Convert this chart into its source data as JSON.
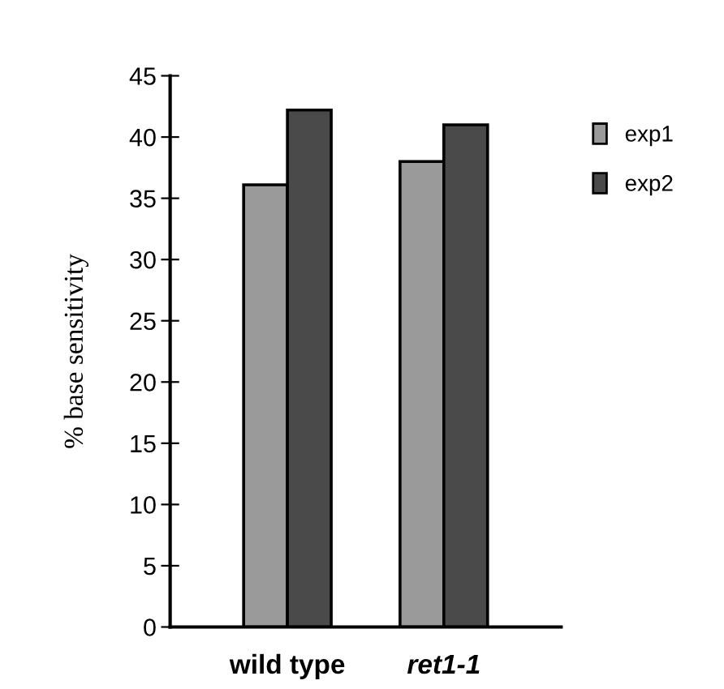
{
  "chart_data": {
    "type": "bar",
    "ylabel": "% base sensitivity",
    "categories": [
      "wild type",
      "ret1-1"
    ],
    "series": [
      {
        "name": "exp1",
        "color": "#9a9a9a",
        "values": [
          36.1,
          38.0
        ]
      },
      {
        "name": "exp2",
        "color": "#4a4a4a",
        "values": [
          42.2,
          41.0
        ]
      }
    ],
    "ylim": [
      0,
      45
    ],
    "yticks": [
      0,
      5,
      10,
      15,
      20,
      25,
      30,
      35,
      40,
      45
    ],
    "grid": false,
    "legend": "top right"
  }
}
